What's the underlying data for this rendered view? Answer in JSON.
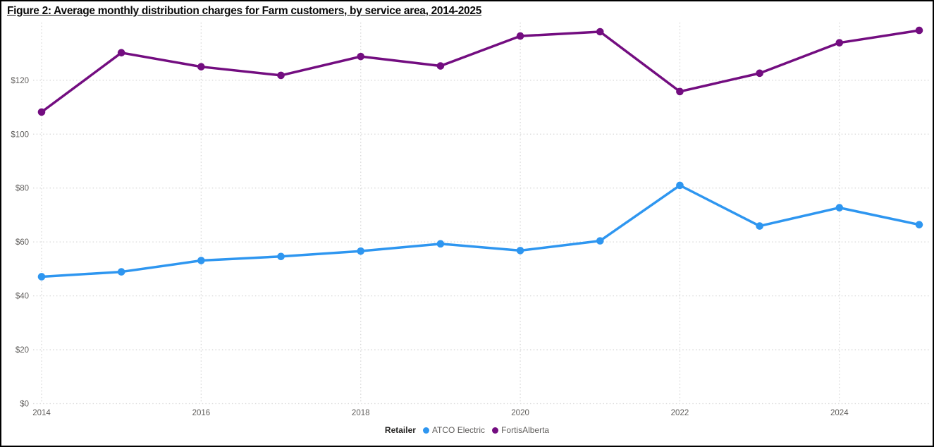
{
  "figure": {
    "title": "Figure 2: Average monthly distribution charges for Farm customers, by service area, 2014-2025"
  },
  "legend": {
    "label": "Retailer",
    "items": [
      {
        "label": "ATCO Electric",
        "color": "#2e96f0"
      },
      {
        "label": "FortisAlberta",
        "color": "#730d80"
      }
    ]
  },
  "colors": {
    "grid": "#d8d8d8",
    "tick_text": "#605e5c",
    "atco_blue": "#2e96f0",
    "fortis_purple": "#730d80"
  },
  "chart_data": {
    "type": "line",
    "title": "Figure 2: Average monthly distribution charges for Farm customers, by service area, 2014-2025",
    "xlabel": "",
    "ylabel": "",
    "x": [
      2014,
      2015,
      2016,
      2017,
      2018,
      2019,
      2020,
      2021,
      2022,
      2023,
      2024,
      2025
    ],
    "series": [
      {
        "name": "ATCO Electric",
        "color": "#2e96f0",
        "values": [
          47.1,
          48.9,
          53.1,
          54.6,
          56.6,
          59.3,
          56.8,
          60.4,
          81.0,
          65.9,
          72.7,
          66.4
        ]
      },
      {
        "name": "FortisAlberta",
        "color": "#730d80",
        "values": [
          108.2,
          130.2,
          125.0,
          121.8,
          128.8,
          125.3,
          136.4,
          138.0,
          115.8,
          122.6,
          133.9,
          138.5
        ]
      }
    ],
    "ylim": [
      0,
      141
    ],
    "yticks": [
      0,
      20,
      40,
      60,
      80,
      100,
      120
    ],
    "ytick_labels": [
      "$0",
      "$20",
      "$40",
      "$60",
      "$80",
      "$100",
      "$120"
    ],
    "xticks": [
      2014,
      2016,
      2018,
      2020,
      2022,
      2024
    ],
    "grid": "dotted horizontal and vertical",
    "legend_position": "bottom-center"
  }
}
